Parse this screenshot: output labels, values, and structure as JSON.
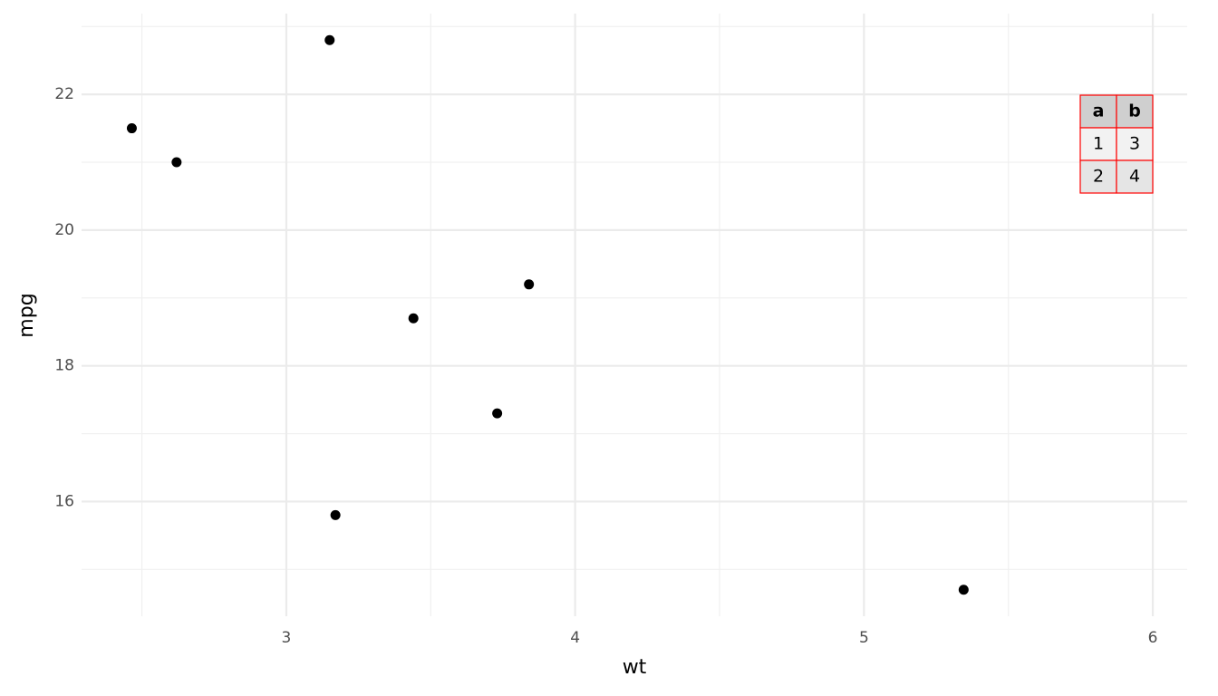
{
  "chart_data": {
    "type": "scatter",
    "x_label": "wt",
    "y_label": "mpg",
    "x": [
      2.465,
      2.62,
      3.15,
      3.17,
      3.44,
      3.73,
      3.84,
      5.345
    ],
    "values": [
      21.5,
      21.0,
      22.8,
      15.8,
      18.7,
      17.3,
      19.2,
      14.7
    ],
    "color": "#000000",
    "xlim": [
      2.291,
      6.119
    ],
    "xticks": [
      3,
      4,
      5,
      6
    ],
    "xminor": [
      2.5,
      3.5,
      4.5,
      5.5
    ],
    "ylim": [
      14.31,
      23.19
    ],
    "yticks": [
      16,
      18,
      20,
      22
    ],
    "yminor": [
      15,
      17,
      19,
      21,
      23
    ],
    "grid": true,
    "inset_table": {
      "columns": [
        "a",
        "b"
      ],
      "rows": [
        [
          1,
          3
        ],
        [
          2,
          4
        ]
      ]
    }
  }
}
